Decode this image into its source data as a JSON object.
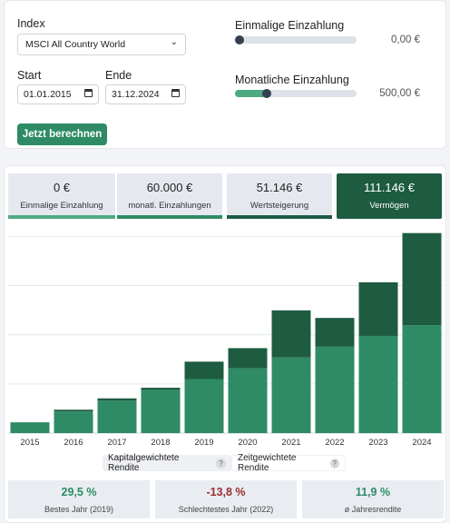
{
  "form": {
    "index_label": "Index",
    "index_value": "MSCI All Country World",
    "start_label": "Start",
    "start_value": "01.01.2015",
    "end_label": "Ende",
    "end_value": "31.12.2024",
    "submit_label": "Jetzt berechnen",
    "one_time_label": "Einmalige Einzahlung",
    "one_time_value": "0,00 €",
    "one_time_fraction": 0.0,
    "monthly_label": "Monatliche Einzahlung",
    "monthly_value": "500,00 €",
    "monthly_fraction": 0.26
  },
  "stats": [
    {
      "value": "0 €",
      "caption": "Einmalige Einzahlung",
      "color": "#4daa82"
    },
    {
      "value": "60.000 €",
      "caption": "monatl. Einzahlungen",
      "color": "#2e8b65"
    },
    {
      "value": "51.146 €",
      "caption": "Wertsteigerung",
      "color": "#1e5c42"
    },
    {
      "value": "111.146 €",
      "caption": "Vermögen",
      "color": "#1e5c42"
    }
  ],
  "colors": {
    "accent": "#2e8b65",
    "deposits": "#2e8b65",
    "gain": "#1e5c42",
    "negative": "#9b2c2c",
    "grid": "#e4e7eb"
  },
  "chart_data": {
    "type": "bar",
    "stacked": true,
    "categories": [
      "2015",
      "2016",
      "2017",
      "2018",
      "2019",
      "2020",
      "2021",
      "2022",
      "2023",
      "2024"
    ],
    "series": [
      {
        "name": "monatl. Einzahlungen",
        "values": [
          6000,
          12000,
          18000,
          24000,
          30000,
          36000,
          42000,
          48000,
          54000,
          60000
        ]
      },
      {
        "name": "Wertsteigerung",
        "values": [
          0,
          1000,
          1300,
          1200,
          9700,
          11200,
          26200,
          16000,
          29800,
          51146
        ]
      }
    ],
    "ylim": [
      0,
      112000
    ],
    "grid": true
  },
  "toggle": {
    "option1": "Kapitalgewichtete Rendite",
    "option2": "Zeitgewichtete Rendite",
    "help": "?"
  },
  "kpis": [
    {
      "value": "29,5 %",
      "caption": "Bestes Jahr (2019)",
      "color": "#2e8b65"
    },
    {
      "value": "-13,8 %",
      "caption": "Schlechtestes Jahr (2022)",
      "color": "#9b2c2c"
    },
    {
      "value": "11,9 %",
      "caption": "ø Jahresrendite",
      "color": "#2e8b65"
    }
  ]
}
